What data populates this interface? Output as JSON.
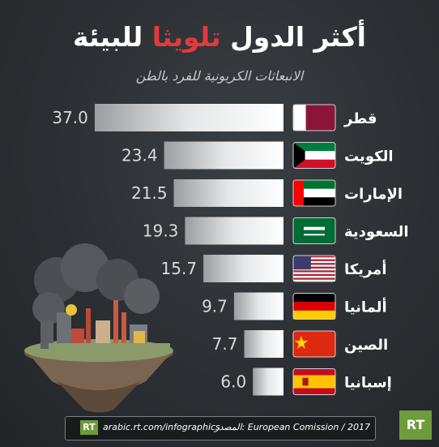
{
  "title": {
    "part_white": "أكثر الدول",
    "part_red": "تلويثا",
    "part_white2": "للبيئة"
  },
  "subtitle": "الانبعاثات الكربونية للفرد بالطن",
  "chart_data": {
    "type": "bar",
    "orientation": "horizontal",
    "categories": [
      "قطر",
      "الكويت",
      "الإمارات",
      "السعودية",
      "أمريكا",
      "ألمانيا",
      "الصين",
      "إسبانيا"
    ],
    "values": [
      37.0,
      23.4,
      21.5,
      19.3,
      15.7,
      9.7,
      7.7,
      6.0
    ],
    "value_labels": [
      "37.0",
      "23.4",
      "21.5",
      "19.3",
      "15.7",
      "9.7",
      "7.7",
      "6.0"
    ],
    "flags": [
      "qatar-flag",
      "kuwait-flag",
      "uae-flag",
      "saudi-flag",
      "usa-flag",
      "germany-flag",
      "china-flag",
      "spain-flag"
    ],
    "title": "أكثر الدول تلويثا للبيئة",
    "xlabel": "",
    "ylabel": "",
    "grid": false,
    "bar_color": "#ffffff"
  },
  "footer": {
    "logo": "RT",
    "url": "arabic.rt.com/infographics",
    "source": "المصدر: European Comission / 2017"
  },
  "brand": {
    "logo": "RT",
    "color": "#6e9b3b",
    "accent": "#e5393b"
  }
}
